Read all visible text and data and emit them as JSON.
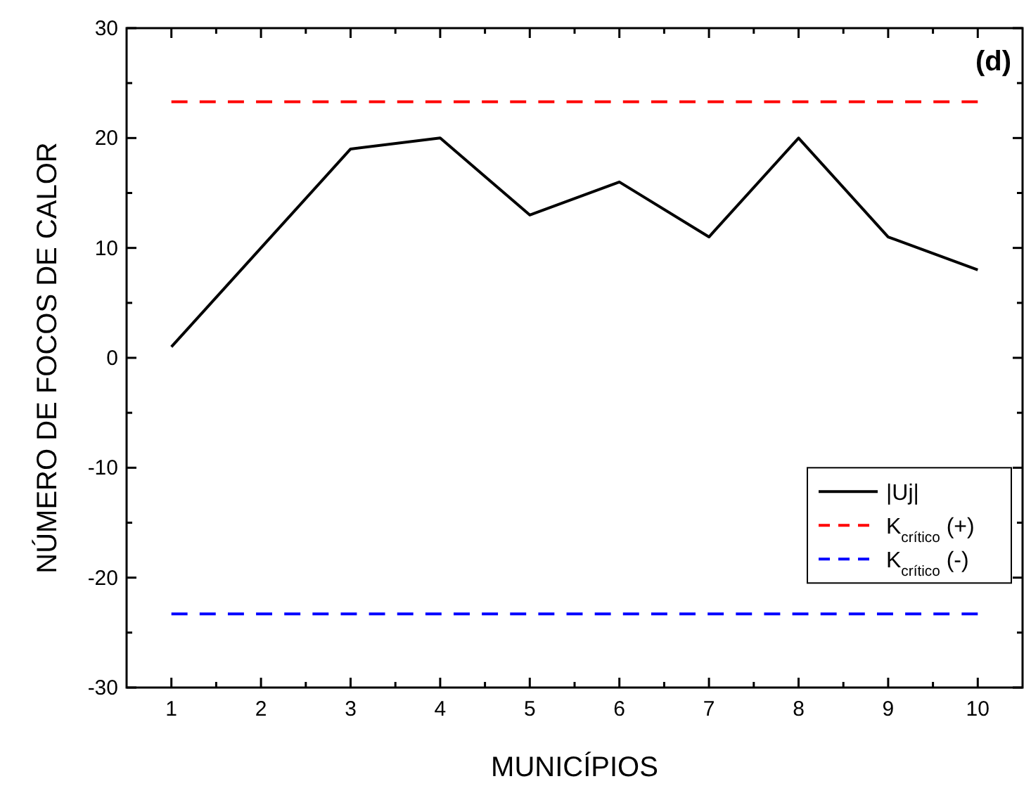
{
  "chart_data": {
    "type": "line",
    "x": [
      1,
      2,
      3,
      4,
      5,
      6,
      7,
      8,
      9,
      10
    ],
    "series": [
      {
        "name": "|Uj|",
        "color": "#000000",
        "values": [
          1,
          10,
          19,
          20,
          13,
          16,
          11,
          20,
          11,
          8
        ],
        "line_style": "solid"
      },
      {
        "name": "K$_{crítico}$ (+)",
        "color": "#ff0000",
        "values": [
          23.3,
          23.3,
          23.3,
          23.3,
          23.3,
          23.3,
          23.3,
          23.3,
          23.3,
          23.3
        ],
        "line_style": "dashed"
      },
      {
        "name": "K$_{crítico}$ (-)",
        "color": "#0000ff",
        "values": [
          -23.3,
          -23.3,
          -23.3,
          -23.3,
          -23.3,
          -23.3,
          -23.3,
          -23.3,
          -23.3,
          -23.3
        ],
        "line_style": "dashed"
      }
    ],
    "xlabel": "MUNICÍPIOS",
    "ylabel": "NÚMERO DE FOCOS DE CALOR",
    "xlim": [
      0.5,
      10.5
    ],
    "xticks": [
      1,
      2,
      3,
      4,
      5,
      6,
      7,
      8,
      9,
      10
    ],
    "ylim": [
      -30,
      30
    ],
    "yticks": [
      -30,
      -20,
      -10,
      0,
      10,
      20,
      30
    ],
    "annotations": [
      "(d)"
    ],
    "legend": "bottom right",
    "grid": false,
    "marker": "none"
  }
}
